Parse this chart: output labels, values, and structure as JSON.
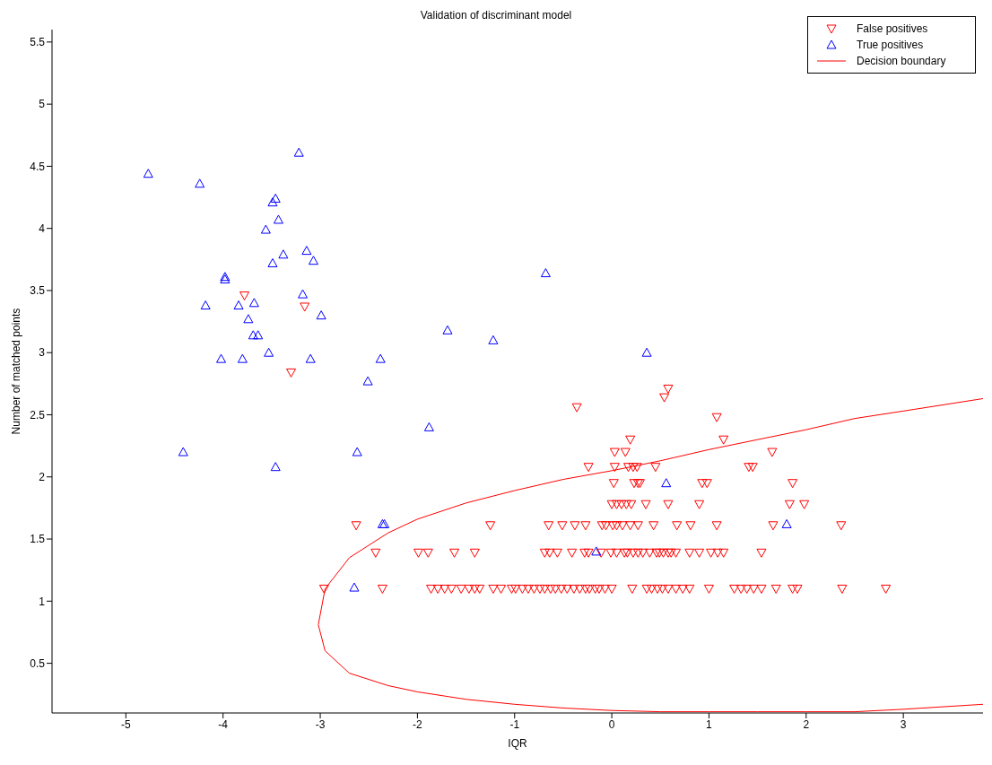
{
  "chart_data": {
    "type": "scatter",
    "title": "Validation of discriminant model",
    "xlabel": "IQR",
    "ylabel": "Number of matched points",
    "xlim": [
      -5.76,
      3.82
    ],
    "ylim": [
      0.1,
      5.6
    ],
    "xticks": [
      -5,
      -4,
      -3,
      -2,
      -1,
      0,
      1,
      2,
      3
    ],
    "yticks": [
      0.5,
      1,
      1.5,
      2,
      2.5,
      3,
      3.5,
      4,
      4.5,
      5,
      5.5
    ],
    "legend": "top right",
    "series": [
      {
        "name": "False positives",
        "color": "#ff0000",
        "marker": "triangle-down",
        "x": [
          -3.78,
          -3.16,
          -3.3,
          -0.36,
          0.54,
          0.58,
          1.08,
          1.15,
          0.19,
          0.03,
          0.14,
          1.65,
          -0.24,
          0.03,
          0.17,
          0.22,
          0.26,
          0.45,
          1.41,
          1.45,
          0.02,
          0.23,
          0.27,
          0.29,
          0.93,
          0.98,
          1.86,
          0,
          0.05,
          0.1,
          0.15,
          0.2,
          0.35,
          0.58,
          0.9,
          1.83,
          1.98,
          -2.63,
          -1.25,
          -0.65,
          -0.51,
          -0.38,
          -0.27,
          -0.1,
          -0.06,
          0.01,
          0.05,
          0.11,
          0.19,
          0.27,
          0.43,
          0.67,
          0.81,
          1.08,
          1.66,
          2.36,
          -2.43,
          -1.99,
          -1.89,
          -1.62,
          -1.41,
          -0.69,
          -0.64,
          -0.56,
          -0.41,
          -0.28,
          -0.24,
          -0.11,
          -0.01,
          0.05,
          0.13,
          0.16,
          0.22,
          0.27,
          0.32,
          0.39,
          0.46,
          0.49,
          0.53,
          0.58,
          0.61,
          0.66,
          0.8,
          0.9,
          1.02,
          1.09,
          1.15,
          1.54,
          -2.96,
          -2.36,
          -1.86,
          -1.79,
          -1.72,
          -1.65,
          -1.55,
          -1.47,
          -1.41,
          -1.36,
          -1.22,
          -1.14,
          -1.03,
          -0.99,
          -0.92,
          -0.86,
          -0.8,
          -0.74,
          -0.69,
          -0.63,
          -0.58,
          -0.52,
          -0.46,
          -0.39,
          -0.33,
          -0.27,
          -0.23,
          -0.17,
          -0.13,
          -0.07,
          0,
          0.21,
          0.36,
          0.41,
          0.47,
          0.52,
          0.58,
          0.66,
          0.73,
          0.8,
          1,
          1.26,
          1.33,
          1.39,
          1.46,
          1.54,
          1.69,
          1.86,
          1.91,
          2.37,
          2.82
        ],
        "values": [
          3.46,
          3.37,
          2.84,
          2.56,
          2.64,
          2.71,
          2.48,
          2.3,
          2.3,
          2.2,
          2.2,
          2.2,
          2.08,
          2.08,
          2.08,
          2.08,
          2.08,
          2.08,
          2.08,
          2.08,
          1.95,
          1.95,
          1.95,
          1.95,
          1.95,
          1.95,
          1.95,
          1.78,
          1.78,
          1.78,
          1.78,
          1.78,
          1.78,
          1.78,
          1.78,
          1.78,
          1.78,
          1.61,
          1.61,
          1.61,
          1.61,
          1.61,
          1.61,
          1.61,
          1.61,
          1.61,
          1.61,
          1.61,
          1.61,
          1.61,
          1.61,
          1.61,
          1.61,
          1.61,
          1.61,
          1.61,
          1.39,
          1.39,
          1.39,
          1.39,
          1.39,
          1.39,
          1.39,
          1.39,
          1.39,
          1.39,
          1.39,
          1.39,
          1.39,
          1.39,
          1.39,
          1.39,
          1.39,
          1.39,
          1.39,
          1.39,
          1.39,
          1.39,
          1.39,
          1.39,
          1.39,
          1.39,
          1.39,
          1.39,
          1.39,
          1.39,
          1.39,
          1.39,
          1.1,
          1.1,
          1.1,
          1.1,
          1.1,
          1.1,
          1.1,
          1.1,
          1.1,
          1.1,
          1.1,
          1.1,
          1.1,
          1.1,
          1.1,
          1.1,
          1.1,
          1.1,
          1.1,
          1.1,
          1.1,
          1.1,
          1.1,
          1.1,
          1.1,
          1.1,
          1.1,
          1.1,
          1.1,
          1.1,
          1.1,
          1.1,
          1.1,
          1.1,
          1.1,
          1.1,
          1.1,
          1.1,
          1.1,
          1.1,
          1.1,
          1.1,
          1.1,
          1.1,
          1.1,
          1.1,
          1.1,
          1.1,
          1.1,
          1.1,
          1.1
        ]
      },
      {
        "name": "True positives",
        "color": "#0000ff",
        "marker": "triangle",
        "x": [
          -4.77,
          -4.24,
          -3.22,
          -3.49,
          -3.46,
          -3.43,
          -3.56,
          -3.98,
          -3.98,
          -4.18,
          -3.84,
          -3.38,
          -3.14,
          -3.07,
          -3.49,
          -3.18,
          -3.68,
          -3.74,
          -3.69,
          -3.64,
          -2.99,
          -3.53,
          -4.02,
          -3.8,
          -3.1,
          -2.38,
          -2.51,
          -1.69,
          -1.22,
          -0.68,
          0.36,
          -1.88,
          -4.41,
          -2.62,
          -3.46,
          0.56,
          -2.36,
          -2.34,
          -0.16,
          1.8,
          -2.65
        ],
        "values": [
          4.44,
          4.36,
          4.61,
          4.21,
          4.24,
          4.07,
          3.99,
          3.61,
          3.59,
          3.38,
          3.38,
          3.79,
          3.82,
          3.74,
          3.72,
          3.47,
          3.4,
          3.27,
          3.14,
          3.14,
          3.3,
          3.0,
          2.95,
          2.95,
          2.95,
          2.95,
          2.77,
          3.18,
          3.1,
          3.64,
          3.0,
          2.4,
          2.2,
          2.2,
          2.08,
          1.95,
          1.62,
          1.62,
          1.4,
          1.62,
          1.11
        ]
      },
      {
        "name": "Decision boundary",
        "type": "line",
        "color": "#ff0000",
        "marker": "none",
        "x": [
          3.82,
          3,
          2.5,
          2,
          1.5,
          1,
          0.5,
          0,
          -0.5,
          -1,
          -1.5,
          -2,
          -2.3,
          -2.7,
          -2.95,
          -3.02,
          -2.95,
          -2.7,
          -2.3,
          -2,
          -1.5,
          -1,
          -0.5,
          0,
          0.5,
          1,
          1.5,
          2,
          2.5,
          3,
          3.82
        ],
        "values": [
          0.17,
          0.13,
          0.11,
          0.11,
          0.11,
          0.11,
          0.11,
          0.12,
          0.14,
          0.17,
          0.21,
          0.27,
          0.32,
          0.42,
          0.6,
          0.81,
          1.1,
          1.35,
          1.55,
          1.66,
          1.79,
          1.89,
          1.98,
          2.05,
          2.13,
          2.22,
          2.3,
          2.38,
          2.47,
          2.53,
          2.63
        ]
      }
    ]
  }
}
